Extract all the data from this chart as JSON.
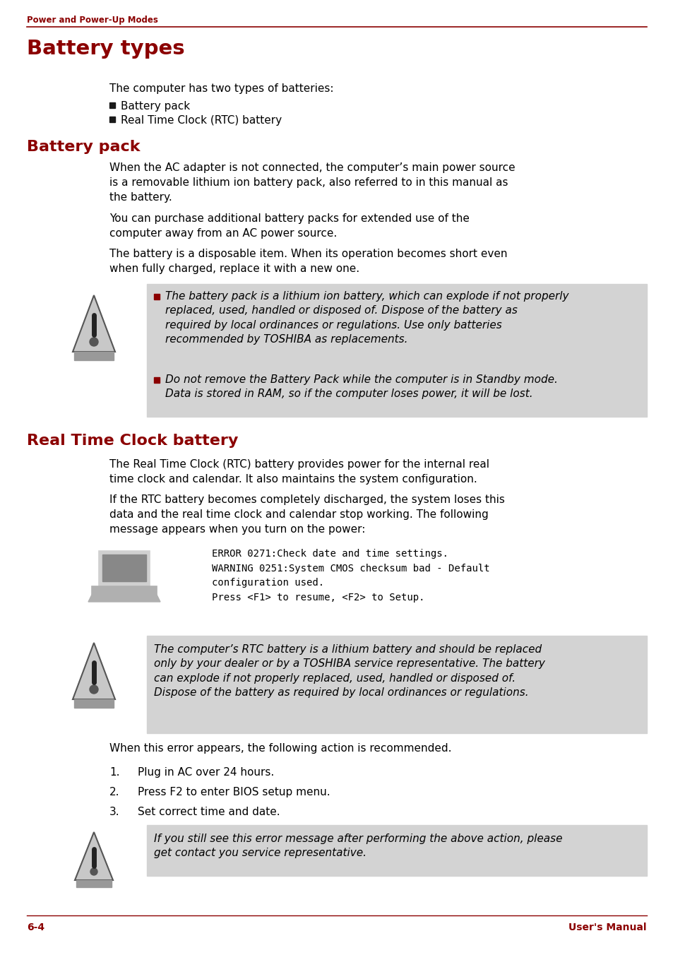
{
  "bg_color": "#ffffff",
  "header_text": "Power and Power-Up Modes",
  "title_color": "#8b0000",
  "body_color": "#000000",
  "footer_left": "6-4",
  "footer_right": "User's Manual",
  "warning_bg": "#d3d3d3",
  "red_color": "#8b0000",
  "dark_color": "#1a1a1a"
}
